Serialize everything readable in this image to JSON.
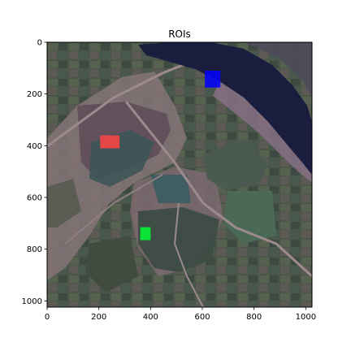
{
  "chart_data": {
    "type": "heatmap",
    "title": "ROIs",
    "xlabel": "",
    "ylabel": "",
    "xlim": [
      0,
      1024
    ],
    "ylim": [
      1024,
      0
    ],
    "xticks": [
      0,
      200,
      400,
      600,
      800,
      1000
    ],
    "yticks": [
      0,
      200,
      400,
      600,
      800,
      1000
    ],
    "xtick_labels": [
      "0",
      "200",
      "400",
      "600",
      "800",
      "1000"
    ],
    "ytick_labels": [
      "0",
      "200",
      "400",
      "600",
      "800",
      "1000"
    ],
    "image": "satellite false-color image of fields, roads and a lake (dark blue) in the upper right",
    "rois": [
      {
        "color": "#ff4444",
        "x0": 205,
        "x1": 280,
        "y0": 360,
        "y1": 410
      },
      {
        "color": "#0000ff",
        "x0": 610,
        "x1": 670,
        "y0": 110,
        "y1": 175
      },
      {
        "color": "#00ff33",
        "x0": 360,
        "x1": 400,
        "y0": 715,
        "y1": 765
      }
    ],
    "grid": false
  }
}
